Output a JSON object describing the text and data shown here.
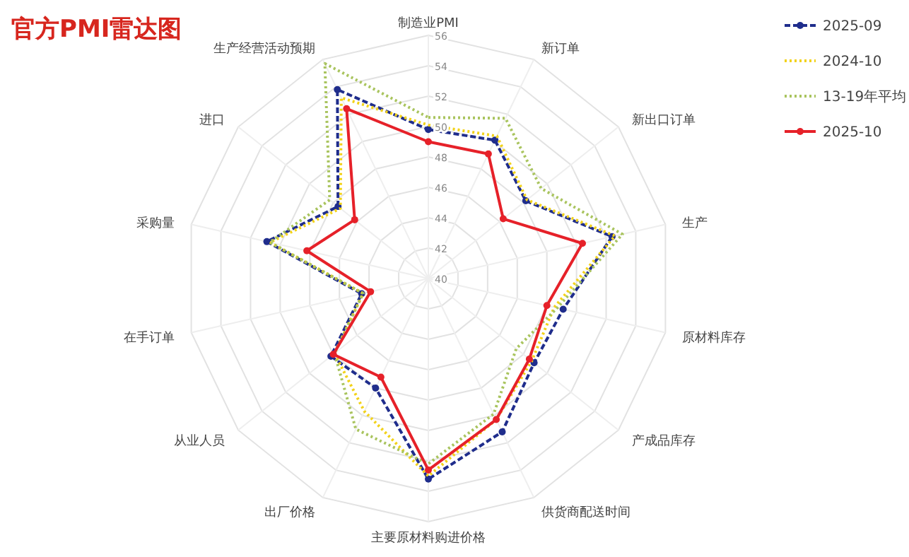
{
  "chart_data": {
    "type": "radar",
    "title": "官方PMI雷达图",
    "categories": [
      "制造业PMI",
      "新订单",
      "新出口订单",
      "生产",
      "原材料库存",
      "产成品库存",
      "供货商配送时间",
      "主要原材料购进价格",
      "出厂价格",
      "从业人员",
      "在手订单",
      "采购量",
      "进口",
      "生产经营活动预期"
    ],
    "ylim": [
      40,
      56
    ],
    "yticks": [
      40,
      42,
      44,
      46,
      48,
      50,
      52,
      54,
      56
    ],
    "grid": true,
    "legend": "top right",
    "series": [
      {
        "name": "2025-09",
        "color": "#1f2d8c",
        "line_style": "dashed",
        "marker": "circle",
        "values": [
          49.8,
          50.1,
          48.2,
          52.4,
          49.1,
          48.9,
          51.2,
          53.2,
          48.0,
          48.2,
          44.5,
          50.9,
          47.6,
          53.8
        ]
      },
      {
        "name": "2024-10",
        "color": "#f2d21a",
        "line_style": "dotted",
        "marker": "none",
        "values": [
          50.1,
          50.4,
          48.3,
          52.6,
          48.5,
          48.7,
          50.3,
          53.0,
          49.7,
          47.9,
          44.4,
          50.7,
          47.4,
          53.2
        ]
      },
      {
        "name": "13-19年平均",
        "color": "#a9c45e",
        "line_style": "dotted",
        "marker": "none",
        "values": [
          50.6,
          51.7,
          49.5,
          53.1,
          48.7,
          47.4,
          49.9,
          52.2,
          51.0,
          47.9,
          44.4,
          50.7,
          48.3,
          55.7
        ]
      },
      {
        "name": "2025-10",
        "color": "#e62129",
        "line_style": "solid",
        "marker": "circle",
        "values": [
          49.0,
          49.1,
          46.3,
          50.4,
          48.0,
          48.5,
          50.3,
          52.6,
          47.2,
          48.0,
          43.9,
          48.2,
          46.2,
          52.4
        ]
      }
    ]
  }
}
